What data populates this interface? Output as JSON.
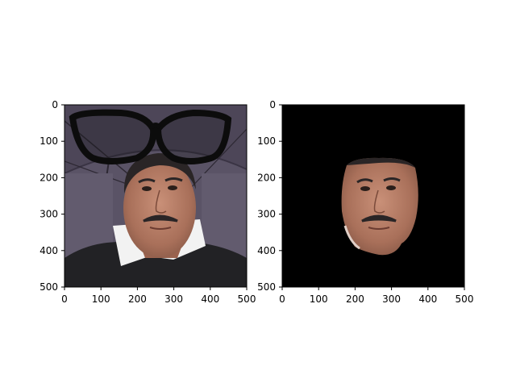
{
  "panels": [
    {
      "name": "left",
      "content": "photo-with-glasses",
      "x_ticks": [
        "0",
        "100",
        "200",
        "300",
        "400",
        "500"
      ],
      "y_ticks": [
        "0",
        "100",
        "200",
        "300",
        "400",
        "500"
      ]
    },
    {
      "name": "right",
      "content": "face-mask",
      "x_ticks": [
        "0",
        "100",
        "200",
        "300",
        "400",
        "500"
      ],
      "y_ticks": [
        "0",
        "100",
        "200",
        "300",
        "400",
        "500"
      ]
    }
  ],
  "colors": {
    "background": "#ffffff",
    "mask_background": "#000000",
    "skin": "#b58068",
    "hair": "#2a2526",
    "umbrella": "#5a5366",
    "sweater": "#222225",
    "collar": "#f2f2f2",
    "glasses": "#0c0c0c"
  }
}
